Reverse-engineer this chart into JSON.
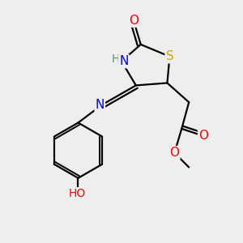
{
  "bg_color": "#eeeeee",
  "atom_colors": {
    "C": "#000000",
    "H": "#5a8a8a",
    "N": "#0000ff",
    "O": "#ff0000",
    "S": "#ccaa00"
  },
  "bond_color": "#000000",
  "bond_width": 1.6,
  "figsize": [
    3.0,
    3.0
  ],
  "dpi": 100,
  "xlim": [
    0,
    10
  ],
  "ylim": [
    0,
    10
  ]
}
